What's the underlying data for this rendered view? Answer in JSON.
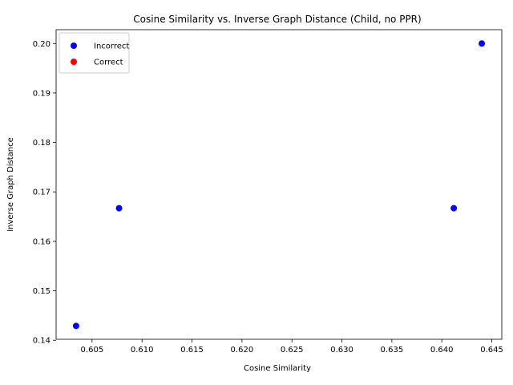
{
  "chart_data": {
    "type": "scatter",
    "title": "Cosine Similarity vs. Inverse Graph Distance (Child, no PPR)",
    "xlabel": "Cosine Similarity",
    "ylabel": "Inverse Graph Distance",
    "xlim": [
      0.6014,
      0.646
    ],
    "ylim": [
      0.1402,
      0.2028
    ],
    "xticks": [
      0.605,
      0.61,
      0.615,
      0.62,
      0.625,
      0.63,
      0.635,
      0.64,
      0.645
    ],
    "xtick_labels": [
      "0.605",
      "0.610",
      "0.615",
      "0.620",
      "0.625",
      "0.630",
      "0.635",
      "0.640",
      "0.645"
    ],
    "yticks": [
      0.14,
      0.15,
      0.16,
      0.17,
      0.18,
      0.19,
      0.2
    ],
    "ytick_labels": [
      "0.14",
      "0.15",
      "0.16",
      "0.17",
      "0.18",
      "0.19",
      "0.20"
    ],
    "legend_position": "upper-left",
    "series": [
      {
        "name": "Incorrect",
        "color": "#0000ff",
        "points": [
          {
            "x": 0.6034,
            "y": 0.1429
          },
          {
            "x": 0.6077,
            "y": 0.1667
          },
          {
            "x": 0.6412,
            "y": 0.1667
          },
          {
            "x": 0.644,
            "y": 0.2
          }
        ]
      },
      {
        "name": "Correct",
        "color": "#ff0000",
        "points": []
      }
    ]
  }
}
